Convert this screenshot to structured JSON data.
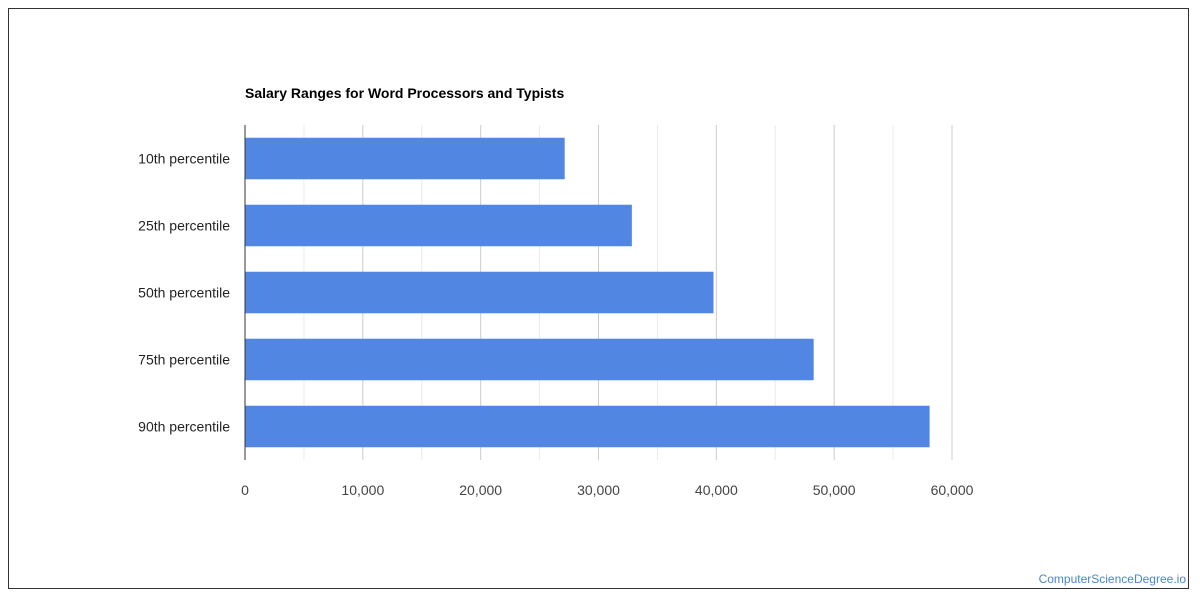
{
  "chart_data": {
    "type": "bar",
    "orientation": "horizontal",
    "title": "Salary Ranges for Word Processors and Typists",
    "categories": [
      "10th percentile",
      "25th percentile",
      "50th percentile",
      "75th percentile",
      "90th percentile"
    ],
    "values": [
      27130,
      32830,
      39760,
      48260,
      58100
    ],
    "xlim": [
      0,
      60000
    ],
    "x_ticks": [
      0,
      10000,
      20000,
      30000,
      40000,
      50000,
      60000
    ],
    "x_tick_labels": [
      "0",
      "10,000",
      "20,000",
      "30,000",
      "40,000",
      "50,000",
      "60,000"
    ],
    "xlabel": "",
    "ylabel": "",
    "grid": true,
    "legend": "none",
    "bar_color": "#5286e3",
    "grid_color": "#cccccc",
    "minor_grid_color": "#ebebeb"
  },
  "watermark": "ComputerScienceDegree.io"
}
